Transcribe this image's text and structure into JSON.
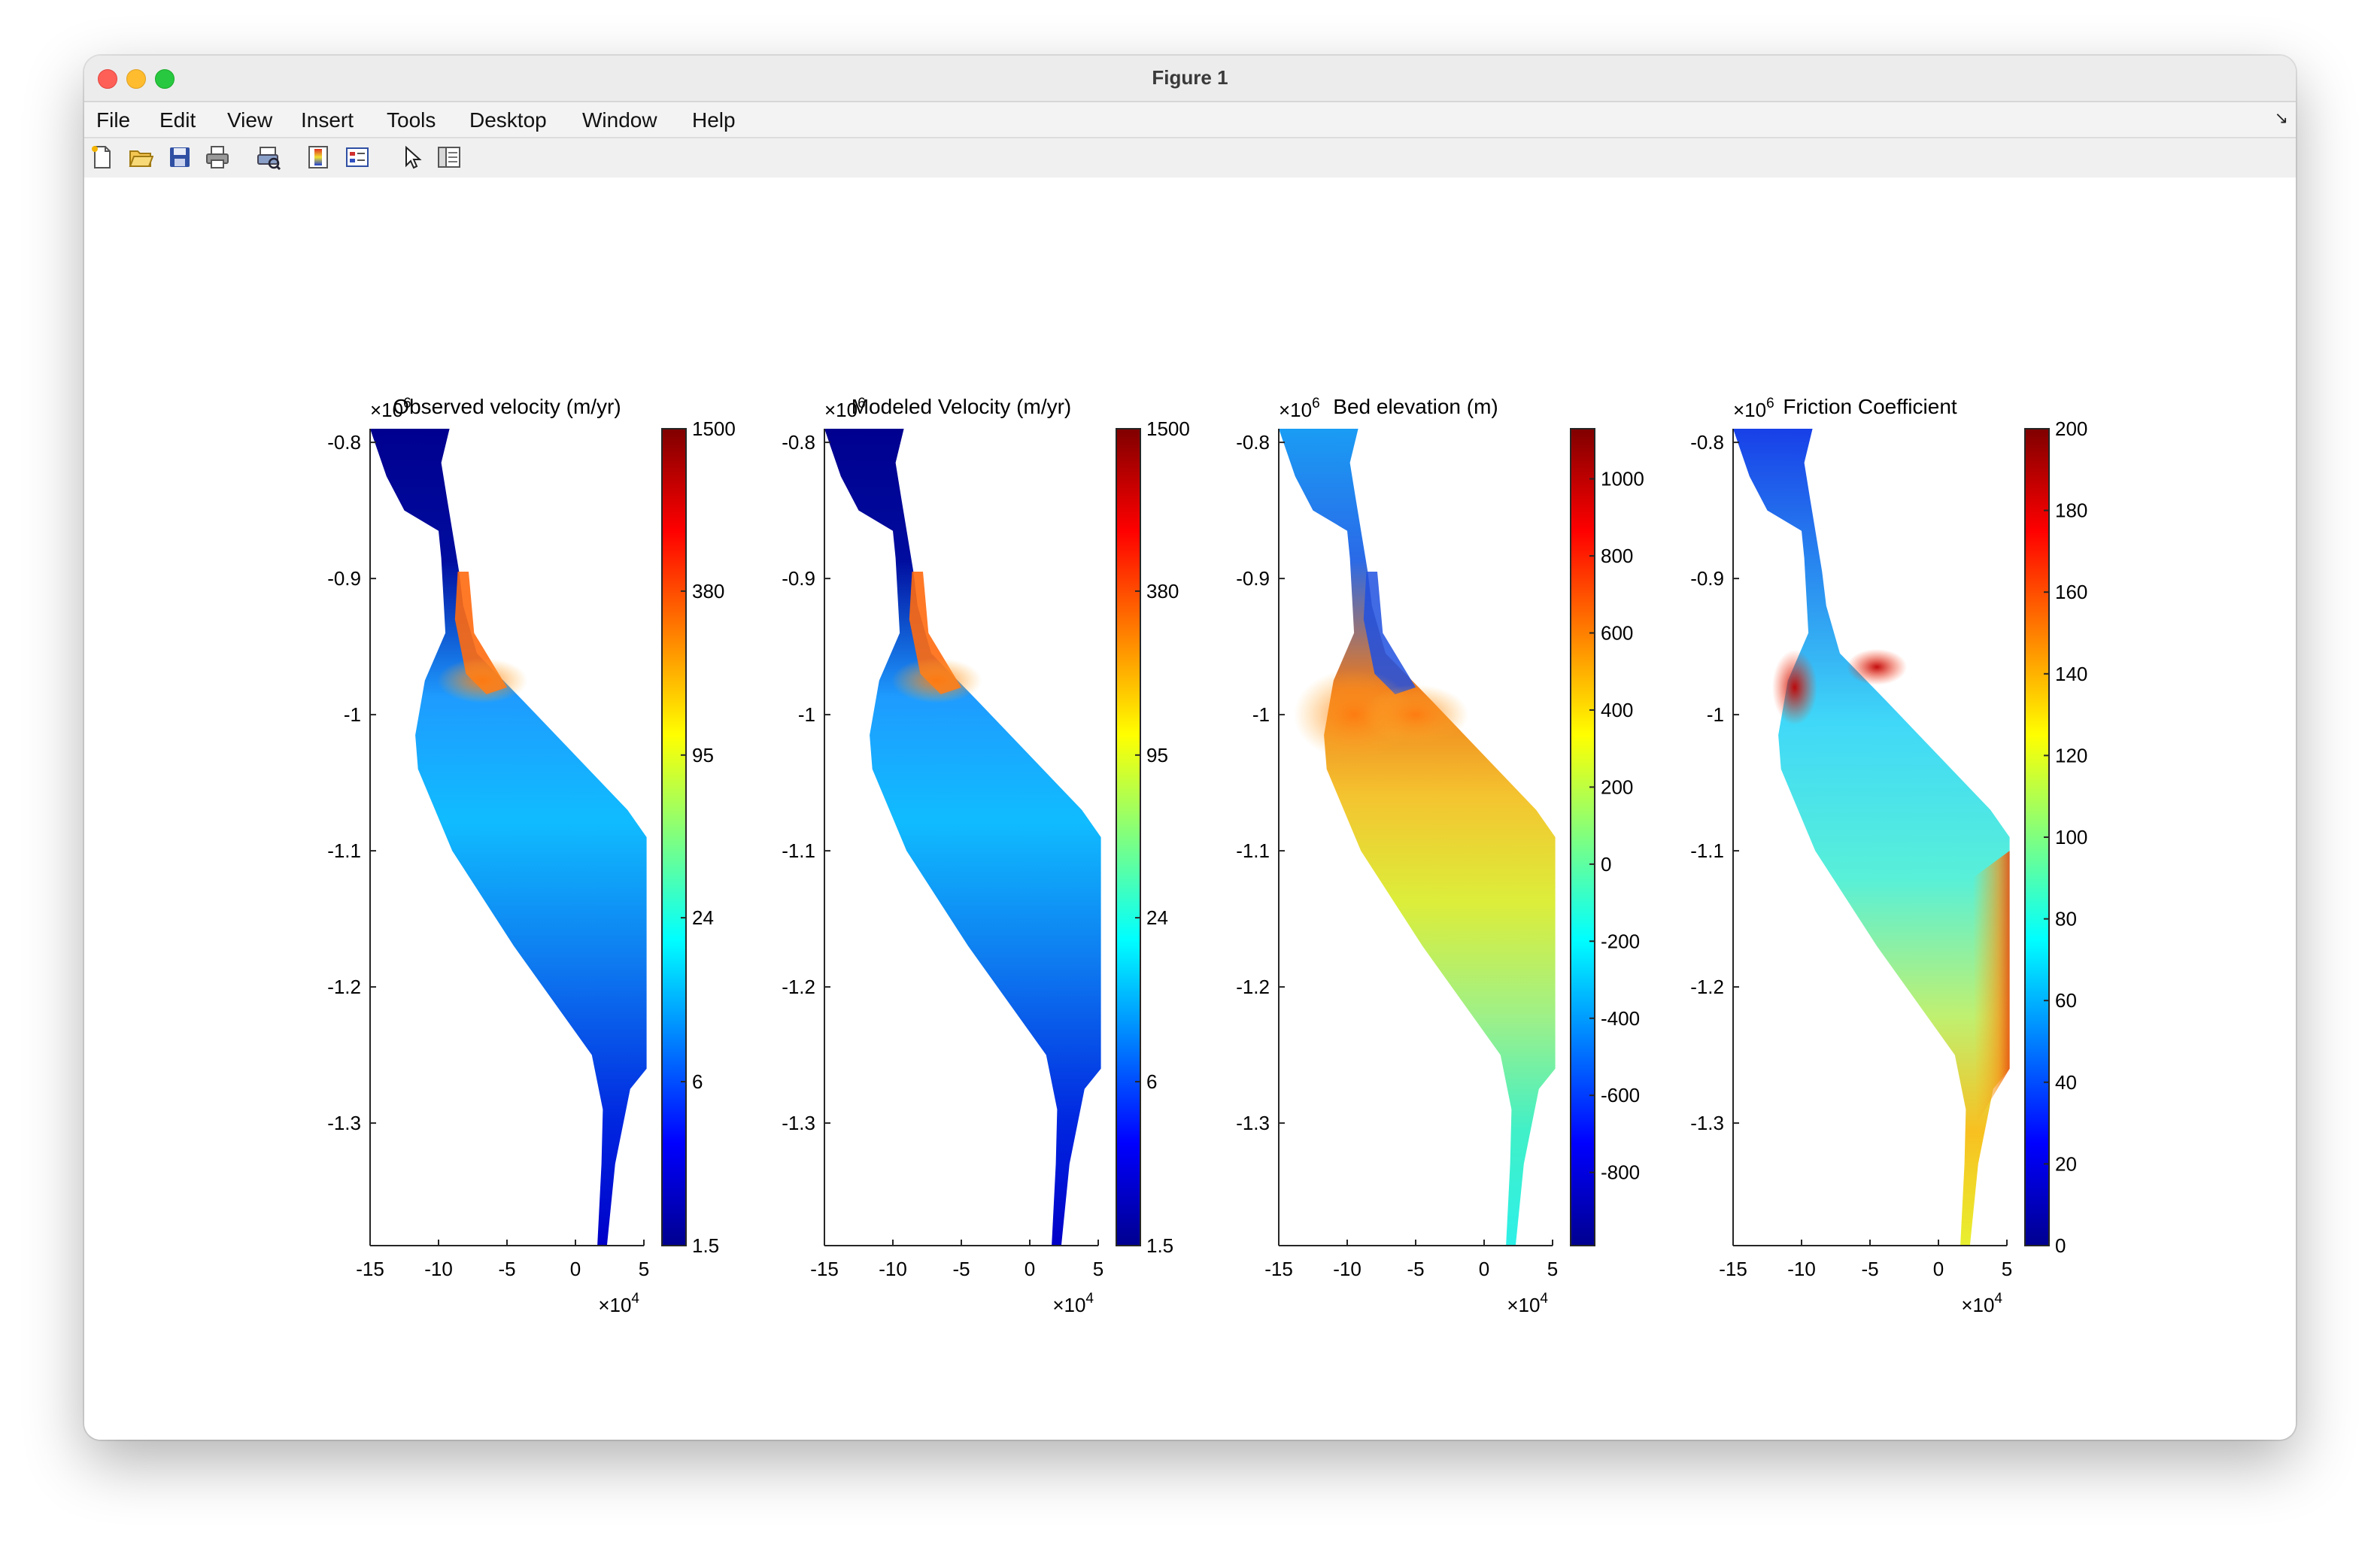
{
  "window": {
    "title": "Figure 1"
  },
  "menu": [
    "File",
    "Edit",
    "View",
    "Insert",
    "Tools",
    "Desktop",
    "Window",
    "Help"
  ],
  "toolbar": [
    {
      "name": "new-figure-icon"
    },
    {
      "name": "open-file-icon"
    },
    {
      "name": "save-icon"
    },
    {
      "name": "print-icon"
    },
    {
      "name": "print-preview-icon"
    },
    {
      "name": "colorbar-icon"
    },
    {
      "name": "legend-icon"
    },
    {
      "name": "edit-plot-cursor-icon"
    },
    {
      "name": "property-inspector-icon"
    }
  ],
  "chart_data": [
    {
      "type": "heatmap",
      "title": "Observed velocity (m/yr)",
      "xlim": [
        -15,
        5
      ],
      "xticks": [
        "-15",
        "-10",
        "-5",
        "0",
        "5"
      ],
      "x_exponent": "4",
      "ylim": [
        -1.39,
        -0.79
      ],
      "yticks": [
        "-0.8",
        "-0.9",
        "-1",
        "-1.1",
        "-1.2",
        "-1.3"
      ],
      "y_exponent": "6",
      "colorbar": {
        "ticks": [
          "1500",
          "380",
          "95",
          "24",
          "6",
          "1.5"
        ],
        "scale": "log",
        "colormap": "jet"
      }
    },
    {
      "type": "heatmap",
      "title": "Modeled Velocity (m/yr)",
      "xlim": [
        -15,
        5
      ],
      "xticks": [
        "-15",
        "-10",
        "-5",
        "0",
        "5"
      ],
      "x_exponent": "4",
      "ylim": [
        -1.39,
        -0.79
      ],
      "yticks": [
        "-0.8",
        "-0.9",
        "-1",
        "-1.1",
        "-1.2",
        "-1.3"
      ],
      "y_exponent": "6",
      "colorbar": {
        "ticks": [
          "1500",
          "380",
          "95",
          "24",
          "6",
          "1.5"
        ],
        "scale": "log",
        "colormap": "jet"
      }
    },
    {
      "type": "heatmap",
      "title": "Bed elevation (m)",
      "xlim": [
        -15,
        5
      ],
      "xticks": [
        "-15",
        "-10",
        "-5",
        "0",
        "5"
      ],
      "x_exponent": "4",
      "ylim": [
        -1.39,
        -0.79
      ],
      "yticks": [
        "-0.8",
        "-0.9",
        "-1",
        "-1.1",
        "-1.2",
        "-1.3"
      ],
      "y_exponent": "6",
      "colorbar": {
        "ticks": [
          "1000",
          "800",
          "600",
          "400",
          "200",
          "0",
          "-200",
          "-400",
          "-600",
          "-800"
        ],
        "range": [
          -990,
          1130
        ],
        "colormap": "jet"
      }
    },
    {
      "type": "heatmap",
      "title": "Friction Coefficient",
      "xlim": [
        -15,
        5
      ],
      "xticks": [
        "-15",
        "-10",
        "-5",
        "0",
        "5"
      ],
      "x_exponent": "4",
      "ylim": [
        -1.39,
        -0.79
      ],
      "yticks": [
        "-0.8",
        "-0.9",
        "-1",
        "-1.1",
        "-1.2",
        "-1.3"
      ],
      "y_exponent": "6",
      "colorbar": {
        "ticks": [
          "200",
          "180",
          "160",
          "140",
          "120",
          "100",
          "80",
          "60",
          "40",
          "20",
          "0"
        ],
        "range": [
          0,
          200
        ],
        "colormap": "jet"
      }
    }
  ]
}
